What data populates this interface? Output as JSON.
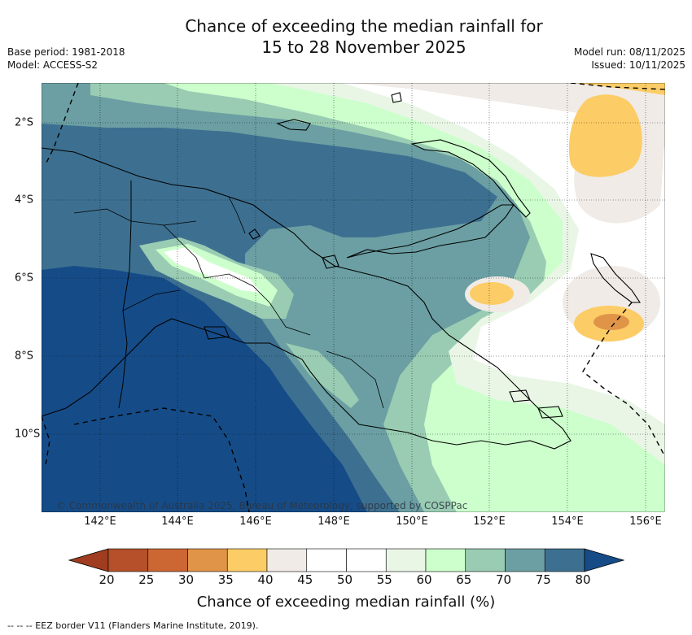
{
  "title": {
    "line1": "Chance of exceeding the median rainfall for",
    "line2": "15 to 28 November 2025"
  },
  "meta": {
    "base_period": "Base period: 1981-2018",
    "model": "Model: ACCESS-S2",
    "model_run": "Model run: 08/11/2025",
    "issued": "Issued: 10/11/2025"
  },
  "map": {
    "attribution": "© Commonwealth of Australia 2025, Bureau of Meteorology, supported by COSPPac",
    "lon_labels": [
      "142°E",
      "144°E",
      "146°E",
      "148°E",
      "150°E",
      "152°E",
      "154°E",
      "156°E"
    ],
    "lat_labels": [
      "2°S",
      "4°S",
      "6°S",
      "8°S",
      "10°S"
    ]
  },
  "colorbar": {
    "title": "Chance of exceeding median rainfall (%)",
    "labels": [
      "20",
      "25",
      "30",
      "35",
      "40",
      "45",
      "50",
      "55",
      "60",
      "65",
      "70",
      "75",
      "80"
    ],
    "colors": {
      "below20": "#a03c1f",
      "20-25": "#b5502a",
      "25-30": "#cc6633",
      "30-35": "#e09448",
      "35-40": "#fccc66",
      "40-45": "#f0ebe6",
      "45-50": "#ffffff",
      "50-55": "#ffffff",
      "55-60": "#e9f6e6",
      "60-65": "#ccffcc",
      "65-70": "#99ccb2",
      "70-75": "#6b9fa3",
      "75-80": "#3d7090",
      "above80": "#154c88"
    }
  },
  "footer": {
    "eez_legend": "--  --  -- EEZ border V11 (Flanders Marine Institute, 2019)."
  }
}
